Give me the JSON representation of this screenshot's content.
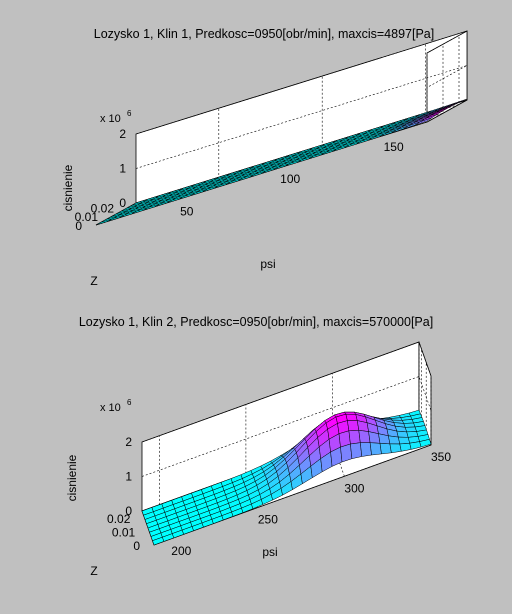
{
  "window": {
    "background": "#c0c0c0"
  },
  "chart_data": [
    {
      "type": "surface",
      "title": "Lozysko 1, Klin 1, Predkosc=0950[obr/min], maxcis=4897[Pa]",
      "xlabel": "psi",
      "ylabel": "Z",
      "zlabel": "cisnienie",
      "z_multiplier": "x 10",
      "z_multiplier_exp": "6",
      "xlim": [
        10,
        170
      ],
      "ylim": [
        0,
        0.025
      ],
      "zlim": [
        0,
        2
      ],
      "xticks": [
        50,
        100,
        150
      ],
      "xtick_labels": [
        "50",
        "100",
        "150"
      ],
      "yticks": [
        0,
        0.01,
        0.02
      ],
      "ytick_labels": [
        "0",
        "0.01",
        "0.02"
      ],
      "zticks": [
        0,
        1,
        2
      ],
      "ztick_labels": [
        "0",
        "1",
        "2"
      ],
      "grid": true,
      "colormap": [
        "#00ffff",
        "#ff00ff"
      ],
      "peak_value": 0.004897,
      "peak_x": 165,
      "surface_profile": "rising-end"
    },
    {
      "type": "surface",
      "title": "Lozysko 1, Klin 2, Predkosc=0950[obr/min], maxcis=570000[Pa]",
      "xlabel": "psi",
      "ylabel": "Z",
      "zlabel": "cisnienie",
      "z_multiplier": "x 10",
      "z_multiplier_exp": "6",
      "xlim": [
        190,
        350
      ],
      "ylim": [
        0,
        0.025
      ],
      "zlim": [
        0,
        2
      ],
      "xticks": [
        200,
        250,
        300,
        350
      ],
      "xtick_labels": [
        "200",
        "250",
        "300",
        "350"
      ],
      "yticks": [
        0,
        0.01,
        0.02
      ],
      "ytick_labels": [
        "0",
        "0.01",
        "0.02"
      ],
      "zticks": [
        0,
        1,
        2
      ],
      "ztick_labels": [
        "0",
        "1",
        "2"
      ],
      "grid": true,
      "colormap": [
        "#00ffff",
        "#ff00ff"
      ],
      "peak_value": 0.57,
      "peak_x": 300,
      "surface_profile": "hump"
    }
  ]
}
